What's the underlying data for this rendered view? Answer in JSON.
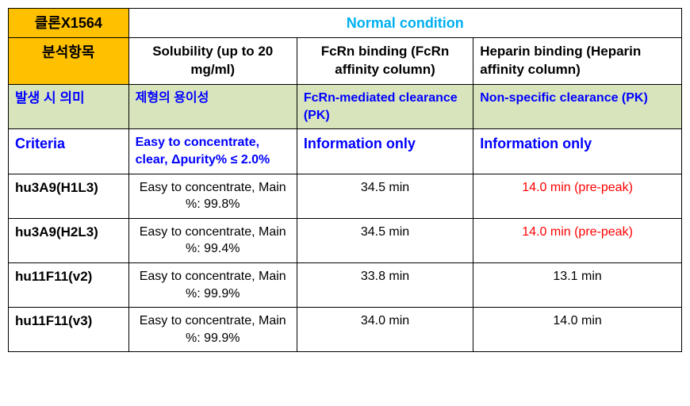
{
  "header": {
    "clone_label": "클론X1564",
    "condition": "Normal condition",
    "analysis_label": "분석항목",
    "columns": {
      "solubility": "Solubility (up to 20 mg/ml)",
      "fcrn": "FcRn binding (FcRn affinity column)",
      "heparin": "Heparin binding (Heparin affinity column)"
    }
  },
  "meaning_row": {
    "label": "발생 시 의미",
    "solubility": "제형의 용이성",
    "fcrn": "FcRn-mediated clearance (PK)",
    "heparin": "Non-specific clearance  (PK)"
  },
  "criteria_row": {
    "label": "Criteria",
    "solubility": "Easy to concentrate, clear, Δpurity% ≤ 2.0%",
    "fcrn": "Information only",
    "heparin": "Information only"
  },
  "rows": [
    {
      "name": "hu3A9(H1L3)",
      "solubility": "Easy to concentrate, Main %: 99.8%",
      "fcrn": "34.5 min",
      "heparin": "14.0 min (pre-peak)",
      "heparin_color": "#ff0000"
    },
    {
      "name": "hu3A9(H2L3)",
      "solubility": "Easy to concentrate, Main %: 99.4%",
      "fcrn": "34.5 min",
      "heparin": "14.0 min (pre-peak)",
      "heparin_color": "#ff0000"
    },
    {
      "name": "hu11F11(v2)",
      "solubility": "Easy to concentrate, Main %: 99.9%",
      "fcrn": "33.8 min",
      "heparin": "13.1 min",
      "heparin_color": "#000000"
    },
    {
      "name": "hu11F11(v3)",
      "solubility": "Easy to concentrate, Main %: 99.9%",
      "fcrn": "34.0 min",
      "heparin": "14.0 min",
      "heparin_color": "#000000"
    }
  ],
  "colors": {
    "orange": "#ffc000",
    "cyan": "#00b0f0",
    "green_bg": "#d7e4bc",
    "blue": "#0000ff",
    "red": "#ff0000",
    "border": "#000000"
  }
}
